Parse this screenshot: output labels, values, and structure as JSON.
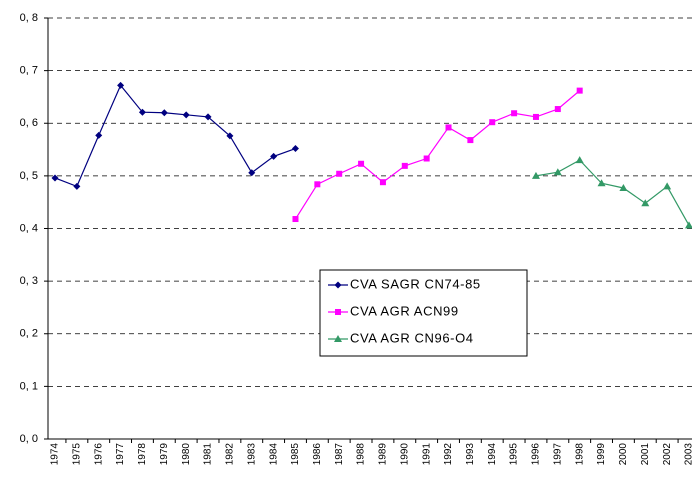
{
  "chart_data": {
    "type": "line",
    "categories": [
      "1974",
      "1975",
      "1976",
      "1977",
      "1978",
      "1979",
      "1980",
      "1981",
      "1982",
      "1983",
      "1984",
      "1985",
      "1986",
      "1987",
      "1988",
      "1989",
      "1990",
      "1991",
      "1992",
      "1993",
      "1994",
      "1995",
      "1996",
      "1997",
      "1998",
      "1999",
      "2000",
      "2001",
      "2002",
      "2003"
    ],
    "series": [
      {
        "name": "CVA SAGR CN74-85",
        "color": "#000080",
        "marker": "diamond",
        "values": [
          0.496,
          0.48,
          0.577,
          0.672,
          0.621,
          0.62,
          0.616,
          0.612,
          0.576,
          0.506,
          0.537,
          0.552,
          null,
          null,
          null,
          null,
          null,
          null,
          null,
          null,
          null,
          null,
          null,
          null,
          null,
          null,
          null,
          null,
          null,
          null
        ]
      },
      {
        "name": "CVA AGR ACN99",
        "color": "#ff00ff",
        "marker": "square",
        "values": [
          null,
          null,
          null,
          null,
          null,
          null,
          null,
          null,
          null,
          null,
          null,
          0.418,
          0.484,
          0.504,
          0.523,
          0.488,
          0.519,
          0.533,
          0.592,
          0.568,
          0.602,
          0.619,
          0.612,
          0.627,
          0.662,
          null,
          null,
          null,
          null,
          null
        ]
      },
      {
        "name": "CVA AGR CN96-O4",
        "color": "#339966",
        "marker": "triangle",
        "values": [
          null,
          null,
          null,
          null,
          null,
          null,
          null,
          null,
          null,
          null,
          null,
          null,
          null,
          null,
          null,
          null,
          null,
          null,
          null,
          null,
          null,
          null,
          0.5,
          0.507,
          0.53,
          0.486,
          0.477,
          0.448,
          0.48,
          0.406
        ]
      }
    ],
    "ylim": [
      0,
      0.8
    ],
    "yticks": [
      {
        "value": 0,
        "label": "0, 0"
      },
      {
        "value": 0.1,
        "label": "0, 1"
      },
      {
        "value": 0.2,
        "label": "0, 2"
      },
      {
        "value": 0.3,
        "label": "0, 3"
      },
      {
        "value": 0.4,
        "label": "0, 4"
      },
      {
        "value": 0.5,
        "label": "0, 5"
      },
      {
        "value": 0.6,
        "label": "0, 6"
      },
      {
        "value": 0.7,
        "label": "0, 7"
      },
      {
        "value": 0.8,
        "label": "0, 8"
      }
    ],
    "grid": true
  }
}
